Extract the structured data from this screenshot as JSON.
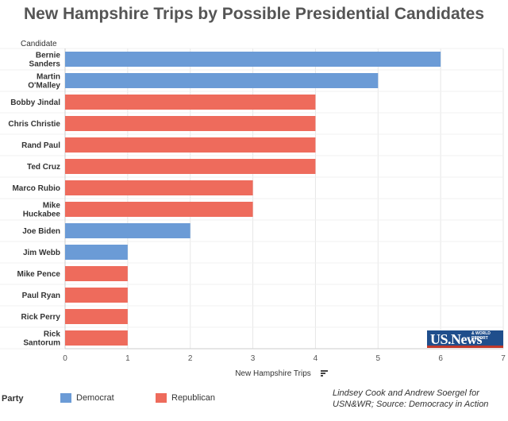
{
  "chart_data": {
    "type": "bar",
    "orientation": "horizontal",
    "title": "New Hampshire Trips by Possible Presidential Candidates",
    "row_header": "Candidate",
    "xlabel": "New Hampshire Trips",
    "xlim": [
      0,
      7
    ],
    "xticks": [
      0,
      1,
      2,
      3,
      4,
      5,
      6,
      7
    ],
    "grid": true,
    "categories": [
      [
        "Bernie",
        "Sanders"
      ],
      [
        "Martin",
        "O'Malley"
      ],
      [
        "Bobby Jindal"
      ],
      [
        "Chris Christie"
      ],
      [
        "Rand Paul"
      ],
      [
        "Ted Cruz"
      ],
      [
        "Marco Rubio"
      ],
      [
        "Mike",
        "Huckabee"
      ],
      [
        "Joe Biden"
      ],
      [
        "Jim Webb"
      ],
      [
        "Mike Pence"
      ],
      [
        "Paul Ryan"
      ],
      [
        "Rick Perry"
      ],
      [
        "Rick",
        "Santorum"
      ]
    ],
    "values": [
      6,
      5,
      4,
      4,
      4,
      4,
      3,
      3,
      2,
      1,
      1,
      1,
      1,
      1
    ],
    "party": [
      "Democrat",
      "Democrat",
      "Republican",
      "Republican",
      "Republican",
      "Republican",
      "Republican",
      "Republican",
      "Democrat",
      "Democrat",
      "Republican",
      "Republican",
      "Republican",
      "Republican"
    ],
    "colors": {
      "Democrat": "#6b9bd6",
      "Republican": "#ee6b5c"
    }
  },
  "legend": {
    "title": "Party",
    "items": [
      {
        "label": "Democrat",
        "color": "#6b9bd6"
      },
      {
        "label": "Republican",
        "color": "#ee6b5c"
      }
    ]
  },
  "credit": "Lindsey Cook and Andrew Soergel for USN&WR; Source: Democracy in Action",
  "logo": {
    "text": "US.News",
    "sub": "& WORLD REPORT"
  },
  "sort_icon": "sort-descending-icon"
}
